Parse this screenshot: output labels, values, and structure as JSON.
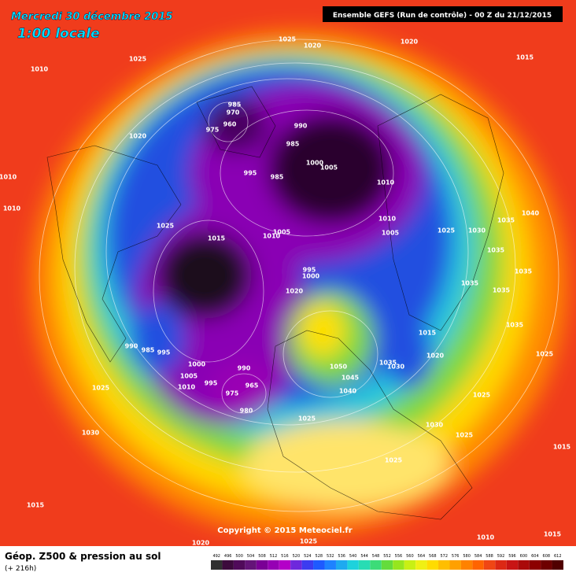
{
  "header": {
    "date": "Mercredi 30 décembre 2015",
    "time": "1:00 locale",
    "run": "Ensemble GEFS  (Run de contrôle)  -  00 Z du 21/12/2015"
  },
  "copyright": "Copyright © 2015 Meteociel.fr",
  "footer": {
    "title": "Géop. Z500 & pression au sol",
    "lead": "(+ 216h)"
  },
  "isobar_labels": [
    1025,
    1020,
    1020,
    1015,
    1025,
    1010,
    985,
    970,
    960,
    975,
    990,
    985,
    1020,
    995,
    985,
    1000,
    1005,
    1010,
    1010,
    1010,
    1025,
    1015,
    1010,
    1005,
    1010,
    1005,
    1025,
    1030,
    1035,
    1040,
    1035,
    1035,
    995,
    1000,
    1020,
    1035,
    1035,
    1015,
    1035,
    1025,
    990,
    985,
    995,
    1000,
    990,
    1005,
    1010,
    995,
    965,
    975,
    980,
    1050,
    1035,
    1030,
    1045,
    1020,
    1040,
    1025,
    1025,
    1025,
    1030,
    1025,
    1030,
    1015,
    1025,
    1015,
    1020,
    1025,
    1010,
    1015
  ],
  "colorbar": {
    "values": [
      492,
      496,
      500,
      504,
      508,
      512,
      516,
      520,
      524,
      528,
      532,
      536,
      540,
      544,
      548,
      552,
      556,
      560,
      564,
      568,
      572,
      576,
      580,
      584,
      588,
      592,
      596,
      600,
      604,
      608,
      612
    ],
    "colors": [
      "#303030",
      "#3c0a3c",
      "#500a5a",
      "#641478",
      "#7a0096",
      "#9600b4",
      "#b400c8",
      "#6e28dc",
      "#3c3cf0",
      "#1e5aff",
      "#1e82ff",
      "#1eaaf0",
      "#1ed2dc",
      "#28dcb4",
      "#3cdc78",
      "#64dc3c",
      "#96e61e",
      "#c8f014",
      "#f0f014",
      "#ffdc00",
      "#ffbe00",
      "#ffa000",
      "#ff8200",
      "#ff6400",
      "#f04614",
      "#dc2814",
      "#c81414",
      "#aa0a0a",
      "#8c0000",
      "#6e0000",
      "#500000"
    ]
  }
}
